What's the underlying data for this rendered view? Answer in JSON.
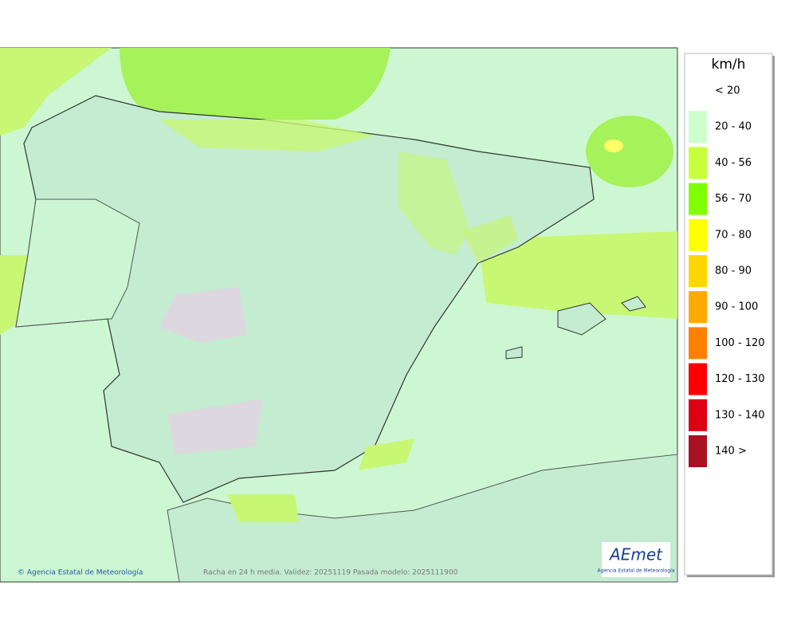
{
  "legend": {
    "unit": "km/h",
    "items": [
      {
        "label": "< 20"
      },
      {
        "label": "20 - 40",
        "color": "#ccffcc"
      },
      {
        "label": "40 - 56",
        "color": "#c8ff3c"
      },
      {
        "label": "56 - 70",
        "color": "#7fff00"
      },
      {
        "label": "70 - 80",
        "color": "#ffff00"
      },
      {
        "label": "80 - 90",
        "color": "#ffd700"
      },
      {
        "label": "90 - 100",
        "color": "#ffaa00"
      },
      {
        "label": "100 - 120",
        "color": "#ff8000"
      },
      {
        "label": "120 - 130",
        "color": "#ff0000"
      },
      {
        "label": "130 - 140",
        "color": "#dd0011"
      },
      {
        "label": "140 >",
        "color": "#aa1122"
      }
    ]
  },
  "footer": {
    "credit": "© Agencia Estatal de Meteorología",
    "caption": "Racha en 24 h media. Validez: 20251119 Pasada modelo: 2025111900"
  },
  "logo": {
    "name": "AEmet",
    "subtitle": "Agencia Estatal de Meteorología"
  }
}
